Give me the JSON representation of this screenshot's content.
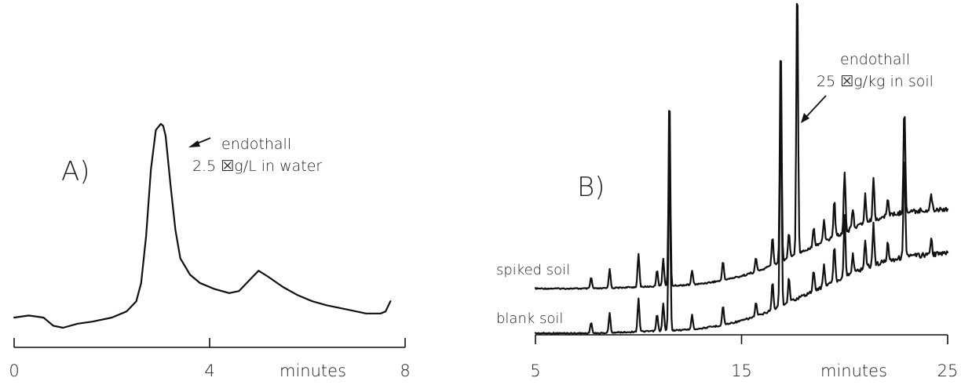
{
  "chart_data": [
    {
      "panel_label": "A)",
      "type": "line",
      "xlabel": "minutes",
      "xlim": [
        0,
        8
      ],
      "x_ticks": [
        0,
        4,
        8
      ],
      "x_tick_labels": [
        "0",
        "4",
        "8"
      ],
      "annotation": {
        "text_line1": "endothall",
        "text_line2": "2.5 ☒g/L in water",
        "points_to": {
          "x": 3.0
        }
      },
      "series": [
        {
          "x": [
            0,
            0.3,
            0.6,
            0.7,
            0.8,
            1.0,
            1.3,
            1.6,
            2.0,
            2.3,
            2.5,
            2.6,
            2.7,
            2.8,
            2.9,
            3.0,
            3.05,
            3.1,
            3.2,
            3.3,
            3.4,
            3.6,
            3.8,
            4.1,
            4.4,
            4.6,
            4.8,
            5.0,
            5.2,
            5.5,
            5.8,
            6.1,
            6.4,
            6.8,
            7.0,
            7.2,
            7.5,
            7.6,
            7.7
          ],
          "y": [
            0.05,
            0.06,
            0.05,
            0.03,
            0.01,
            0.0,
            0.02,
            0.03,
            0.05,
            0.08,
            0.13,
            0.22,
            0.45,
            0.78,
            0.97,
            1.0,
            0.99,
            0.94,
            0.7,
            0.48,
            0.34,
            0.26,
            0.22,
            0.19,
            0.17,
            0.18,
            0.23,
            0.28,
            0.25,
            0.2,
            0.16,
            0.13,
            0.11,
            0.09,
            0.08,
            0.07,
            0.07,
            0.08,
            0.13
          ]
        }
      ]
    },
    {
      "panel_label": "B)",
      "type": "line",
      "xlabel": "minutes",
      "xlim": [
        5,
        25
      ],
      "x_ticks": [
        5,
        15,
        25
      ],
      "x_tick_labels": [
        "5",
        "15",
        "25"
      ],
      "annotation": {
        "text_line1": "endothall",
        "text_line2": "25 ☒g/kg in soil",
        "points_to": {
          "x": 17.7
        }
      },
      "series": [
        {
          "name": "spiked soil",
          "base_x": [
            5,
            8,
            10,
            12,
            13,
            14,
            15,
            16,
            17,
            18,
            19,
            20,
            21,
            22,
            23,
            24,
            25
          ],
          "base_y": [
            0.0,
            0.0,
            0.01,
            0.02,
            0.03,
            0.05,
            0.08,
            0.12,
            0.18,
            0.24,
            0.3,
            0.36,
            0.42,
            0.46,
            0.49,
            0.5,
            0.51
          ],
          "peaks_x": [
            7.7,
            8.6,
            10.0,
            10.9,
            11.2,
            11.5,
            12.6,
            14.1,
            15.7,
            16.5,
            16.9,
            17.3,
            17.7,
            18.5,
            19.0,
            19.5,
            20.0,
            20.4,
            21.0,
            21.4,
            22.1,
            22.9,
            24.2
          ],
          "peaks_h": [
            0.04,
            0.07,
            0.12,
            0.06,
            0.1,
            0.7,
            0.05,
            0.07,
            0.05,
            0.1,
            0.8,
            0.09,
            1.0,
            0.07,
            0.08,
            0.13,
            0.22,
            0.07,
            0.1,
            0.15,
            0.07,
            0.38,
            0.06
          ]
        },
        {
          "name": "blank soil",
          "base_x": [
            5,
            8,
            10,
            12,
            13,
            14,
            15,
            16,
            17,
            18,
            19,
            20,
            21,
            22,
            23,
            24,
            25
          ],
          "base_y": [
            0.0,
            0.0,
            0.01,
            0.02,
            0.03,
            0.05,
            0.08,
            0.12,
            0.18,
            0.24,
            0.3,
            0.36,
            0.42,
            0.46,
            0.49,
            0.5,
            0.51
          ],
          "peaks_x": [
            7.7,
            8.6,
            10.0,
            10.9,
            11.2,
            11.5,
            12.6,
            14.1,
            15.7,
            16.5,
            16.9,
            17.3,
            18.5,
            19.0,
            19.5,
            20.0,
            20.4,
            21.0,
            21.4,
            22.1,
            22.9,
            24.2
          ],
          "peaks_h": [
            0.04,
            0.07,
            0.12,
            0.06,
            0.1,
            0.7,
            0.05,
            0.07,
            0.05,
            0.1,
            0.8,
            0.09,
            0.07,
            0.08,
            0.13,
            0.22,
            0.07,
            0.1,
            0.15,
            0.07,
            0.38,
            0.06
          ]
        }
      ]
    }
  ]
}
